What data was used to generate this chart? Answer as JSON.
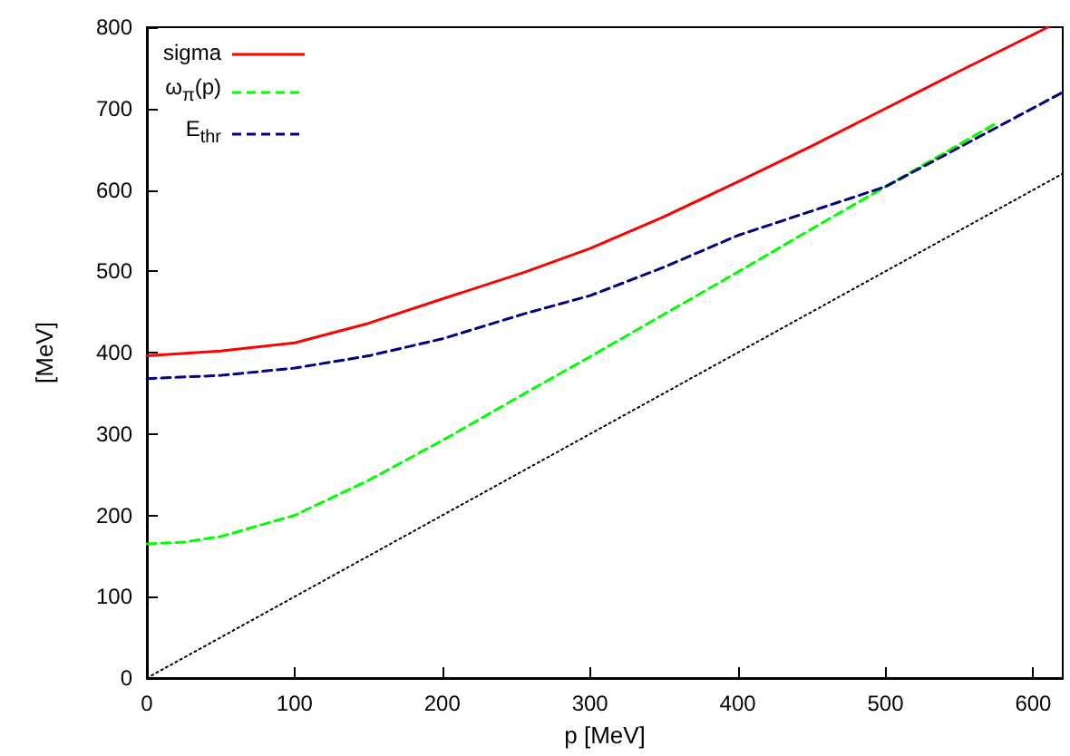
{
  "chart_data": {
    "type": "line",
    "xlabel": "p [MeV]",
    "ylabel": "[MeV]",
    "xlim": [
      0,
      620
    ],
    "xticks": [
      0,
      100,
      200,
      300,
      400,
      500,
      600
    ],
    "ylim": [
      0,
      800
    ],
    "yticks": [
      0,
      100,
      200,
      300,
      400,
      500,
      600,
      700,
      800
    ],
    "grid": false,
    "legend": "top left",
    "marker": "none",
    "series": [
      {
        "name": "sigma",
        "color": "#ff0000",
        "line_style": "solid",
        "x": [
          0,
          50,
          100,
          150,
          200,
          256,
          300,
          350,
          400,
          450,
          500,
          550,
          610
        ],
        "values": [
          396,
          402,
          412,
          436,
          466,
          499,
          528,
          567,
          610,
          654,
          700,
          746,
          800
        ]
      },
      {
        "name": "ω$_{π}$(p)",
        "color": "#00ff00",
        "line_style": "dashed",
        "x": [
          0,
          25,
          50,
          100,
          150,
          200,
          256,
          300,
          350,
          400,
          450,
          500,
          575
        ],
        "values": [
          165,
          167,
          174,
          200,
          243,
          292,
          350,
          395,
          447,
          499,
          552,
          604,
          682
        ]
      },
      {
        "name": "E$_{thr}$",
        "color": "#000080",
        "line_style": "dashed",
        "x": [
          0,
          50,
          100,
          150,
          200,
          256,
          300,
          350,
          400,
          450,
          500,
          560,
          620
        ],
        "values": [
          368,
          372,
          381,
          396,
          417,
          448,
          470,
          505,
          544,
          574,
          604,
          662,
          720
        ]
      },
      {
        "color": "#000000",
        "line_style": "dotted",
        "x": [
          0,
          620
        ],
        "values": [
          0,
          620
        ]
      }
    ]
  }
}
